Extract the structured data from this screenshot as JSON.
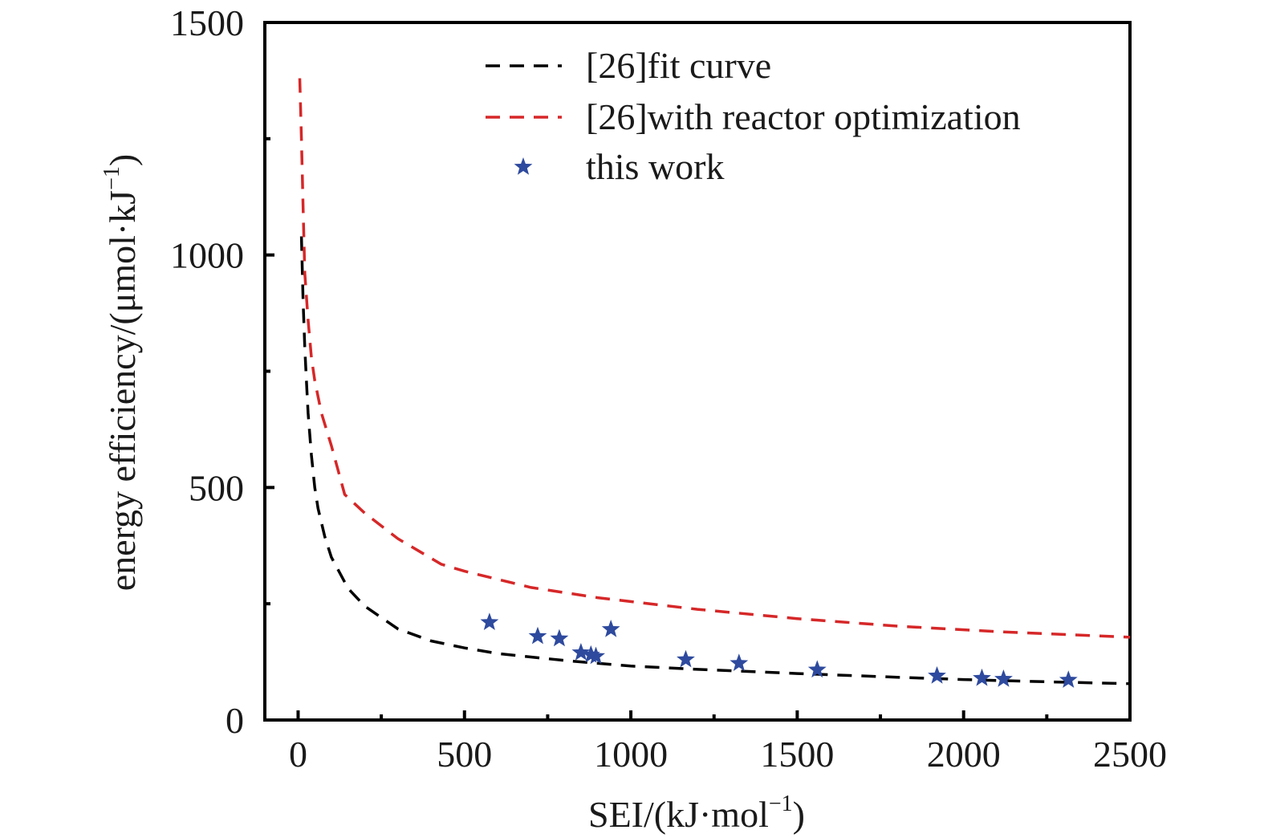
{
  "chart_data": {
    "type": "line",
    "xlabel_main": "SEI/(kJ·mol",
    "xlabel_sup": "−1",
    "xlabel_end": ")",
    "ylabel_main": "energy efficiency/(μmol·kJ",
    "ylabel_sup": "−1",
    "ylabel_end": ")",
    "xlim": [
      -100,
      2500
    ],
    "ylim": [
      0,
      1500
    ],
    "x_ticks": [
      0,
      500,
      1000,
      1500,
      2000,
      2500
    ],
    "x_tick_labels": [
      "0",
      "500",
      "1000",
      "1500",
      "2000",
      "2500"
    ],
    "y_ticks": [
      0,
      500,
      1000,
      1500
    ],
    "y_tick_labels": [
      "0",
      "500",
      "1000",
      "1500"
    ],
    "x_minor_ticks": [
      250,
      750,
      1250,
      1750,
      2250
    ],
    "y_minor_ticks": [
      250,
      750,
      1250
    ],
    "legend_position": "top-right",
    "series": [
      {
        "name": "[26]fit curve",
        "style": "dashed",
        "color": "#000000",
        "x": [
          10,
          15,
          20,
          25,
          30,
          40,
          50,
          60,
          80,
          100,
          150,
          200,
          300,
          400,
          500,
          600,
          800,
          1000,
          1200,
          1500,
          1800,
          2000,
          2200,
          2500
        ],
        "y": [
          1040,
          900,
          800,
          730,
          660,
          570,
          500,
          455,
          395,
          350,
          283,
          245,
          196,
          170,
          155,
          143,
          128,
          116,
          109,
          100,
          92,
          87,
          83,
          78
        ]
      },
      {
        "name": "[26]with reactor optimization",
        "style": "dashed",
        "color": "#d62728",
        "x": [
          5,
          10,
          15,
          20,
          30,
          40,
          50,
          70,
          100,
          140,
          200,
          300,
          430,
          500,
          700,
          900,
          1200,
          1500,
          1800,
          2100,
          2500
        ],
        "y": [
          1380,
          1250,
          1100,
          960,
          860,
          780,
          730,
          660,
          590,
          485,
          445,
          390,
          335,
          320,
          285,
          263,
          238,
          218,
          202,
          190,
          178
        ]
      },
      {
        "name": "this work",
        "style": "markers",
        "marker": "star",
        "color": "#2e4a9e",
        "x": [
          575,
          720,
          785,
          850,
          880,
          895,
          940,
          1165,
          1325,
          1560,
          1920,
          2055,
          2120,
          2315
        ],
        "y": [
          210,
          180,
          175,
          145,
          140,
          137,
          195,
          130,
          122,
          108,
          95,
          90,
          88,
          86
        ]
      }
    ]
  }
}
